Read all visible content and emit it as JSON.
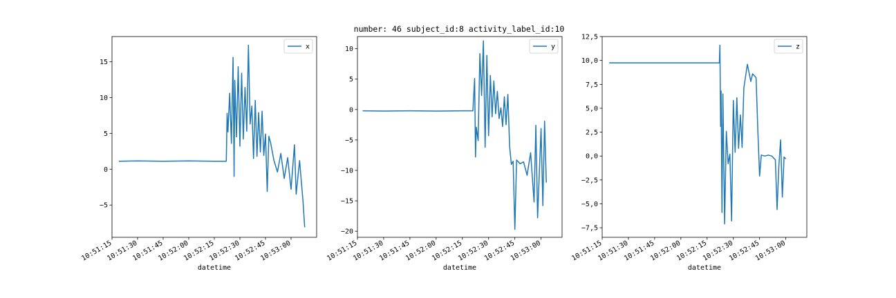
{
  "figure": {
    "title": "number: 46 subject_id:8 activity_label_id:10"
  },
  "chart_data": [
    {
      "type": "line",
      "xlabel": "datetime",
      "ylabel": "",
      "legend_position": "top-right",
      "grid": false,
      "x_range": [
        "10:51:15",
        "10:53:15"
      ],
      "xticks": [
        "10:51:15",
        "10:51:30",
        "10:51:45",
        "10:52:00",
        "10:52:15",
        "10:52:30",
        "10:52:45",
        "10:53:00"
      ],
      "ylim": [
        -9.5,
        18.5
      ],
      "yticks": [
        -5,
        0,
        5,
        10,
        15
      ],
      "ytick_labels": [
        "−5",
        "0",
        "5",
        "10",
        "15"
      ],
      "color": "#1f77b4",
      "series": [
        {
          "name": "x",
          "points": [
            [
              "10:51:19",
              1.1
            ],
            [
              "10:51:30",
              1.15
            ],
            [
              "10:51:45",
              1.1
            ],
            [
              "10:52:00",
              1.15
            ],
            [
              "10:52:15",
              1.1
            ],
            [
              "10:52:22",
              1.1
            ],
            [
              "10:52:22.5",
              7.8
            ],
            [
              "10:52:23",
              5.2
            ],
            [
              "10:52:24",
              10.6
            ],
            [
              "10:52:25",
              3.6
            ],
            [
              "10:52:26",
              15.6
            ],
            [
              "10:52:26.6",
              -1.0
            ],
            [
              "10:52:27",
              12.4
            ],
            [
              "10:52:28",
              4.5
            ],
            [
              "10:52:29",
              14.3
            ],
            [
              "10:52:30",
              3.2
            ],
            [
              "10:52:31",
              13.4
            ],
            [
              "10:52:32",
              4.2
            ],
            [
              "10:52:33",
              11.4
            ],
            [
              "10:52:34",
              5.3
            ],
            [
              "10:52:35",
              17.3
            ],
            [
              "10:52:36",
              6.3
            ],
            [
              "10:52:37",
              8.8
            ],
            [
              "10:52:38",
              1.5
            ],
            [
              "10:52:39",
              9.6
            ],
            [
              "10:52:40",
              1.8
            ],
            [
              "10:52:41",
              7.9
            ],
            [
              "10:52:42",
              2.4
            ],
            [
              "10:52:43",
              8.1
            ],
            [
              "10:52:44",
              1.9
            ],
            [
              "10:52:45",
              4.9
            ],
            [
              "10:52:46",
              -3.1
            ],
            [
              "10:52:47",
              4.6
            ],
            [
              "10:52:48",
              3.7
            ],
            [
              "10:52:50",
              1.2
            ],
            [
              "10:52:52",
              -0.4
            ],
            [
              "10:52:54",
              2.2
            ],
            [
              "10:52:56",
              -1.3
            ],
            [
              "10:52:58",
              1.6
            ],
            [
              "10:53:00",
              -2.8
            ],
            [
              "10:53:02",
              3.4
            ],
            [
              "10:53:03",
              -3.5
            ],
            [
              "10:53:05",
              1.2
            ],
            [
              "10:53:07",
              -4.5
            ],
            [
              "10:53:08",
              -8.1
            ]
          ]
        }
      ]
    },
    {
      "type": "line",
      "xlabel": "datetime",
      "ylabel": "",
      "legend_position": "top-right",
      "grid": false,
      "x_range": [
        "10:51:15",
        "10:53:12"
      ],
      "xticks": [
        "10:51:15",
        "10:51:30",
        "10:51:45",
        "10:52:00",
        "10:52:15",
        "10:52:30",
        "10:52:45",
        "10:53:00"
      ],
      "ylim": [
        -21.0,
        12.0
      ],
      "yticks": [
        -20,
        -15,
        -10,
        -5,
        0,
        5,
        10
      ],
      "ytick_labels": [
        "−20",
        "−15",
        "−10",
        "−5",
        "0",
        "5",
        "10"
      ],
      "color": "#1f77b4",
      "series": [
        {
          "name": "y",
          "points": [
            [
              "10:51:18",
              -0.2
            ],
            [
              "10:51:30",
              -0.25
            ],
            [
              "10:51:45",
              -0.2
            ],
            [
              "10:52:00",
              -0.25
            ],
            [
              "10:52:15",
              -0.2
            ],
            [
              "10:52:21",
              -0.2
            ],
            [
              "10:52:22",
              5.1
            ],
            [
              "10:52:22.5",
              -7.8
            ],
            [
              "10:52:23",
              -2.9
            ],
            [
              "10:52:24",
              -5.1
            ],
            [
              "10:52:25",
              9.2
            ],
            [
              "10:52:26",
              2.3
            ],
            [
              "10:52:27",
              11.3
            ],
            [
              "10:52:28",
              -6.2
            ],
            [
              "10:52:29",
              8.9
            ],
            [
              "10:52:30",
              -4.3
            ],
            [
              "10:52:31",
              5.6
            ],
            [
              "10:52:32",
              -1.2
            ],
            [
              "10:52:33",
              4.7
            ],
            [
              "10:52:34",
              -0.7
            ],
            [
              "10:52:35",
              3.0
            ],
            [
              "10:52:36",
              -1.5
            ],
            [
              "10:52:37",
              0.3
            ],
            [
              "10:52:38",
              -2.8
            ],
            [
              "10:52:39",
              2.1
            ],
            [
              "10:52:40",
              -2.5
            ],
            [
              "10:52:41",
              2.5
            ],
            [
              "10:52:42",
              -6.0
            ],
            [
              "10:52:43",
              -9.0
            ],
            [
              "10:52:44",
              -8.5
            ],
            [
              "10:52:45",
              -19.7
            ],
            [
              "10:52:46",
              -8.3
            ],
            [
              "10:52:48",
              -8.9
            ],
            [
              "10:52:50",
              -8.6
            ],
            [
              "10:52:52",
              -10.8
            ],
            [
              "10:52:54",
              -7.1
            ],
            [
              "10:52:56",
              -15.2
            ],
            [
              "10:52:57",
              -2.6
            ],
            [
              "10:52:58",
              -17.8
            ],
            [
              "10:53:00",
              -3.1
            ],
            [
              "10:53:01",
              -15.8
            ],
            [
              "10:53:02",
              -1.9
            ],
            [
              "10:53:03",
              -12.0
            ]
          ]
        }
      ]
    },
    {
      "type": "line",
      "xlabel": "datetime",
      "ylabel": "",
      "legend_position": "top-right",
      "grid": false,
      "x_range": [
        "10:51:15",
        "10:53:12"
      ],
      "xticks": [
        "10:51:15",
        "10:51:30",
        "10:51:45",
        "10:52:00",
        "10:52:15",
        "10:52:30",
        "10:52:45",
        "10:53:00"
      ],
      "ylim": [
        -8.5,
        12.5
      ],
      "yticks": [
        -7.5,
        -5.0,
        -2.5,
        0.0,
        2.5,
        5.0,
        7.5,
        10.0,
        12.5
      ],
      "ytick_labels": [
        "−7,5",
        "−5,0",
        "−2,5",
        "0,0",
        "2,5",
        "5,0",
        "7,5",
        "10,0",
        "12,5"
      ],
      "color": "#1f77b4",
      "series": [
        {
          "name": "z",
          "points": [
            [
              "10:51:19",
              9.75
            ],
            [
              "10:51:45",
              9.75
            ],
            [
              "10:52:00",
              9.75
            ],
            [
              "10:52:20",
              9.75
            ],
            [
              "10:52:22",
              9.75
            ],
            [
              "10:52:22.3",
              11.6
            ],
            [
              "10:52:22.7",
              3.1
            ],
            [
              "10:52:23",
              6.8
            ],
            [
              "10:52:23.5",
              -5.9
            ],
            [
              "10:52:24",
              6.5
            ],
            [
              "10:52:25",
              -7.1
            ],
            [
              "10:52:26",
              2.6
            ],
            [
              "10:52:27",
              -0.8
            ],
            [
              "10:52:28",
              0.2
            ],
            [
              "10:52:29",
              -6.8
            ],
            [
              "10:52:30",
              5.8
            ],
            [
              "10:52:31",
              0.4
            ],
            [
              "10:52:32",
              6.1
            ],
            [
              "10:52:33",
              0.8
            ],
            [
              "10:52:34",
              4.3
            ],
            [
              "10:52:35",
              0.9
            ],
            [
              "10:52:36",
              7.1
            ],
            [
              "10:52:38",
              9.6
            ],
            [
              "10:52:40",
              7.8
            ],
            [
              "10:52:41",
              8.6
            ],
            [
              "10:52:43",
              8.2
            ],
            [
              "10:52:44",
              2.6
            ],
            [
              "10:52:45",
              -2.1
            ],
            [
              "10:52:46",
              0.1
            ],
            [
              "10:52:48",
              0.0
            ],
            [
              "10:52:50",
              0.1
            ],
            [
              "10:52:52",
              0.0
            ],
            [
              "10:52:54",
              -0.4
            ],
            [
              "10:52:55",
              -5.6
            ],
            [
              "10:52:56",
              -1.1
            ],
            [
              "10:52:57",
              1.7
            ],
            [
              "10:52:58",
              -4.3
            ],
            [
              "10:52:59",
              -0.1
            ],
            [
              "10:53:00",
              -0.3
            ]
          ]
        }
      ]
    }
  ]
}
